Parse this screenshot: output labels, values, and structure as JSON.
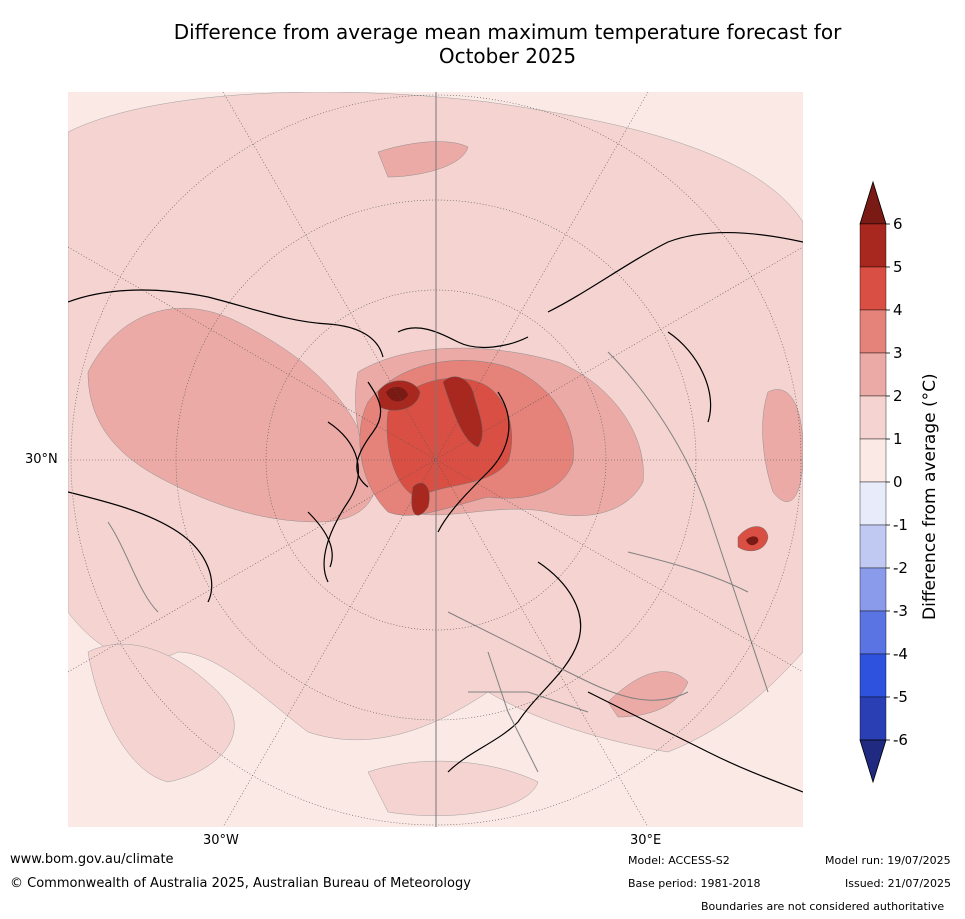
{
  "title_line1": "Difference from average mean maximum temperature forecast for",
  "title_line2": "October 2025",
  "map": {
    "lat_label": "30°N",
    "lon_label_west": "30°W",
    "lon_label_east": "30°E",
    "colors": {
      "c0_1": "#fbe9e6",
      "c1_2": "#f4d3d0",
      "c2_3": "#ebaaa6",
      "c3_4": "#e5827a",
      "c4_5": "#d94f43",
      "c5_6": "#a8281f",
      "c6p": "#7a1a14"
    }
  },
  "colorbar": {
    "title": "Difference from average (°C)",
    "ticks": [
      "6",
      "5",
      "4",
      "3",
      "2",
      "1",
      "0",
      "-1",
      "-2",
      "-3",
      "-4",
      "-5",
      "-6"
    ],
    "colors": [
      "#a8281f",
      "#d94f43",
      "#e5827a",
      "#ebaaa6",
      "#f4d3d0",
      "#fbe9e6",
      "#e8ecfa",
      "#c0c9f2",
      "#8a9bec",
      "#5b74e3",
      "#2f52de",
      "#2a3fb4"
    ],
    "over_color": "#7a1a14",
    "under_color": "#1f2a80"
  },
  "footer": {
    "website": "www.bom.gov.au/climate",
    "copyright": "© Commonwealth of Australia 2025, Australian Bureau of Meteorology",
    "model": "Model: ACCESS-S2",
    "base_period": "Base period: 1981-2018",
    "model_run": "Model run: 19/07/2025",
    "issued": "Issued: 21/07/2025",
    "disclaimer": "Boundaries are not considered authoritative"
  }
}
